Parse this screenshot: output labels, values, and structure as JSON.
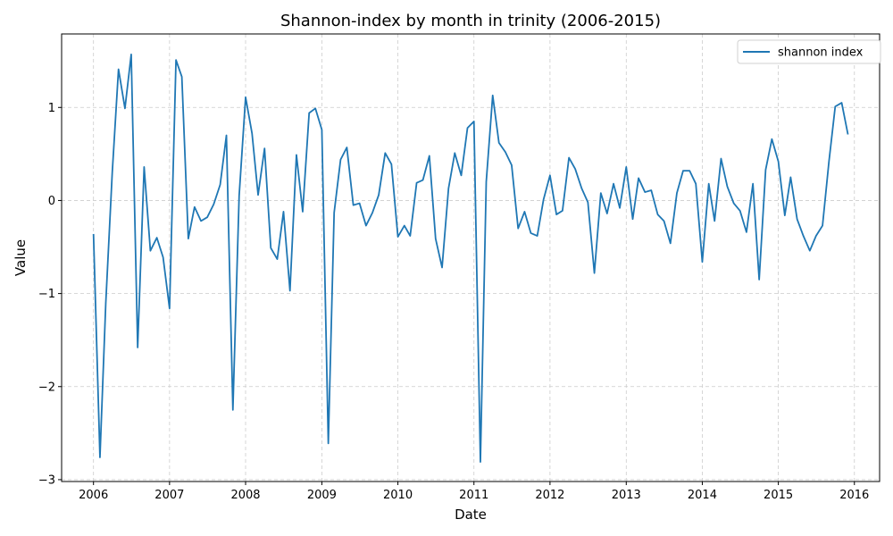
{
  "chart_data": {
    "type": "line",
    "title": "Shannon-index by month in trinity (2006-2015)",
    "xlabel": "Date",
    "ylabel": "Value",
    "xlim": [
      "2005-08-01",
      "2016-05-01"
    ],
    "ylim": [
      -3.02,
      1.79
    ],
    "x_ticks": [
      "2006",
      "2007",
      "2008",
      "2009",
      "2010",
      "2011",
      "2012",
      "2013",
      "2014",
      "2015",
      "2016"
    ],
    "y_ticks": [
      -3,
      -2,
      -1,
      0,
      1
    ],
    "y_tick_labels": [
      "−3",
      "−2",
      "−1",
      "0",
      "1"
    ],
    "grid": true,
    "legend_position": "top-right",
    "color": "#1f77b4",
    "series": [
      {
        "name": "shannon index",
        "x": [
          "2006-01",
          "2006-02",
          "2006-03",
          "2006-04",
          "2006-05",
          "2006-06",
          "2006-07",
          "2006-08",
          "2006-09",
          "2006-10",
          "2006-11",
          "2006-12",
          "2007-01",
          "2007-02",
          "2007-03",
          "2007-04",
          "2007-05",
          "2007-06",
          "2007-07",
          "2007-08",
          "2007-09",
          "2007-10",
          "2007-11",
          "2007-12",
          "2008-01",
          "2008-02",
          "2008-03",
          "2008-04",
          "2008-05",
          "2008-06",
          "2008-07",
          "2008-08",
          "2008-09",
          "2008-10",
          "2008-11",
          "2008-12",
          "2009-01",
          "2009-02",
          "2009-03",
          "2009-04",
          "2009-05",
          "2009-06",
          "2009-07",
          "2009-08",
          "2009-09",
          "2009-10",
          "2009-11",
          "2009-12",
          "2010-01",
          "2010-02",
          "2010-03",
          "2010-04",
          "2010-05",
          "2010-06",
          "2010-07",
          "2010-08",
          "2010-09",
          "2010-10",
          "2010-11",
          "2010-12",
          "2011-01",
          "2011-02",
          "2011-03",
          "2011-04",
          "2011-05",
          "2011-06",
          "2011-07",
          "2011-08",
          "2011-09",
          "2011-10",
          "2011-11",
          "2011-12",
          "2012-01",
          "2012-02",
          "2012-03",
          "2012-04",
          "2012-05",
          "2012-06",
          "2012-07",
          "2012-08",
          "2012-09",
          "2012-10",
          "2012-11",
          "2012-12",
          "2013-01",
          "2013-02",
          "2013-03",
          "2013-04",
          "2013-05",
          "2013-06",
          "2013-07",
          "2013-08",
          "2013-09",
          "2013-10",
          "2013-11",
          "2013-12",
          "2014-01",
          "2014-02",
          "2014-03",
          "2014-04",
          "2014-05",
          "2014-06",
          "2014-07",
          "2014-08",
          "2014-09",
          "2014-10",
          "2014-11",
          "2014-12",
          "2015-01",
          "2015-02",
          "2015-03",
          "2015-04",
          "2015-05",
          "2015-06",
          "2015-07",
          "2015-08",
          "2015-09",
          "2015-10",
          "2015-11",
          "2015-12"
        ],
        "values": [
          -0.36,
          -2.76,
          -1.1,
          0.3,
          1.41,
          0.99,
          1.57,
          -1.58,
          0.36,
          -0.54,
          -0.4,
          -0.61,
          -1.16,
          1.51,
          1.33,
          -0.41,
          -0.07,
          -0.22,
          -0.18,
          -0.04,
          0.17,
          0.7,
          -2.25,
          0.05,
          1.11,
          0.72,
          0.06,
          0.56,
          -0.51,
          -0.63,
          -0.12,
          -0.97,
          0.49,
          -0.12,
          0.94,
          0.99,
          0.76,
          -2.61,
          -0.13,
          0.44,
          0.57,
          -0.05,
          -0.03,
          -0.27,
          -0.13,
          0.06,
          0.51,
          0.39,
          -0.39,
          -0.27,
          -0.38,
          0.19,
          0.22,
          0.48,
          -0.41,
          -0.72,
          0.13,
          0.51,
          0.27,
          0.78,
          0.85,
          -2.81,
          0.2,
          1.13,
          0.62,
          0.52,
          0.38,
          -0.3,
          -0.12,
          -0.35,
          -0.38,
          0.01,
          0.27,
          -0.15,
          -0.11,
          0.46,
          0.34,
          0.13,
          -0.02,
          -0.78,
          0.08,
          -0.14,
          0.18,
          -0.08,
          0.36,
          -0.2,
          0.24,
          0.09,
          0.11,
          -0.15,
          -0.22,
          -0.46,
          0.08,
          0.32,
          0.32,
          0.18,
          -0.66,
          0.18,
          -0.22,
          0.45,
          0.15,
          -0.03,
          -0.11,
          -0.34,
          0.18,
          -0.85,
          0.33,
          0.66,
          0.42,
          -0.16,
          0.25,
          -0.2,
          -0.38,
          -0.54,
          -0.38,
          -0.27,
          0.42,
          1.01,
          1.05,
          0.71
        ]
      }
    ]
  }
}
